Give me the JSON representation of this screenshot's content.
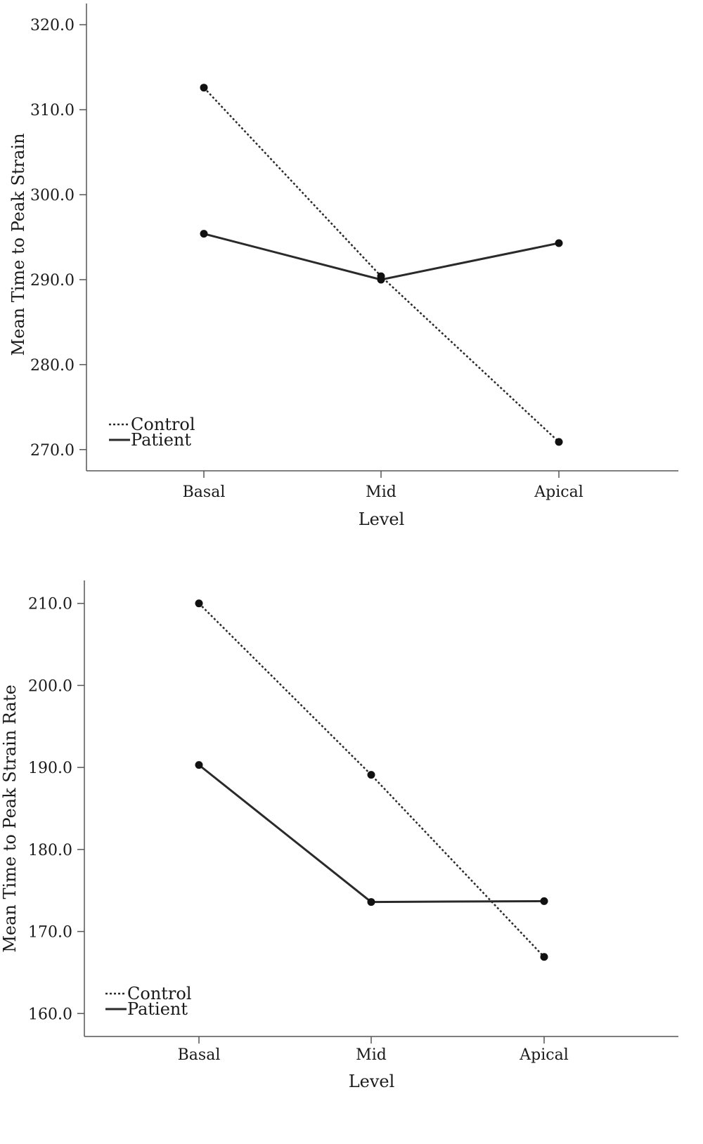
{
  "chart_data": [
    {
      "type": "line",
      "title": "",
      "xlabel": "Level",
      "ylabel": "Mean Time to Peak Strain",
      "categories": [
        "Basal",
        "Mid",
        "Apical"
      ],
      "ylim": [
        267.5,
        322.5
      ],
      "yticks": [
        "270.0",
        "280.0",
        "290.0",
        "300.0",
        "310.0",
        "320.0"
      ],
      "ytick_values": [
        270,
        280,
        290,
        300,
        310,
        320
      ],
      "legend_position": "bottom-left",
      "series": [
        {
          "name": "Control",
          "style": "dotted",
          "values": [
            312.6,
            290.4,
            270.9
          ]
        },
        {
          "name": "Patient",
          "style": "solid",
          "values": [
            295.4,
            290.0,
            294.3
          ]
        }
      ]
    },
    {
      "type": "line",
      "title": "",
      "xlabel": "Level",
      "ylabel": "Mean Time to Peak Strain Rate",
      "categories": [
        "Basal",
        "Mid",
        "Apical"
      ],
      "ylim": [
        157.2,
        212.8
      ],
      "yticks": [
        "160.0",
        "170.0",
        "180.0",
        "190.0",
        "200.0",
        "210.0"
      ],
      "ytick_values": [
        160,
        170,
        180,
        190,
        200,
        210
      ],
      "legend_position": "bottom-left",
      "series": [
        {
          "name": "Control",
          "style": "dotted",
          "values": [
            210.0,
            189.1,
            166.9
          ]
        },
        {
          "name": "Patient",
          "style": "solid",
          "values": [
            190.3,
            173.6,
            173.7
          ]
        }
      ]
    }
  ]
}
